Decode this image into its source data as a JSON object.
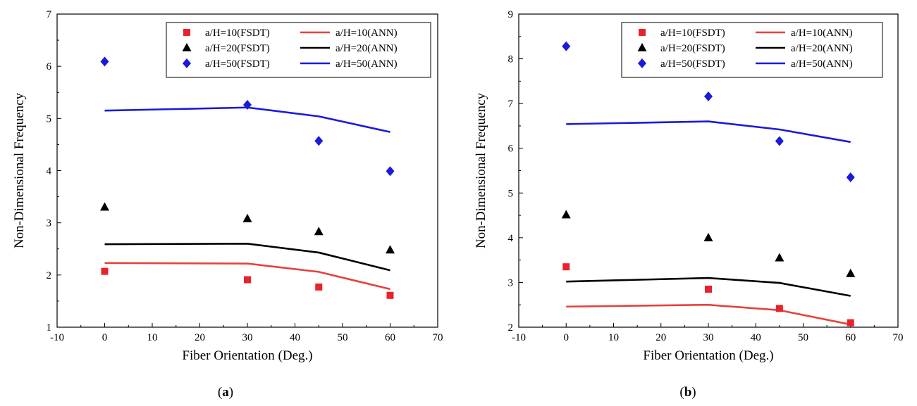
{
  "chart_data": [
    {
      "type": "line",
      "panel_label": "a",
      "caption_open": "(",
      "caption_close": ")",
      "xlabel": "Fiber Orientation (Deg.)",
      "ylabel": "Non-Dimensional Frequency",
      "xlim": [
        -10,
        70
      ],
      "ylim": [
        1,
        7
      ],
      "xticks": [
        -10,
        0,
        10,
        20,
        30,
        40,
        50,
        60,
        70
      ],
      "yticks": [
        1,
        2,
        3,
        4,
        5,
        6,
        7
      ],
      "grid": false,
      "legend_position": "top-right",
      "scatter_series": [
        {
          "name": "a/H=10(FSDT)",
          "marker": "square",
          "color": "#e8232a",
          "x": [
            0,
            30,
            45,
            60
          ],
          "y": [
            2.07,
            1.91,
            1.77,
            1.61
          ]
        },
        {
          "name": "a/H=20(FSDT)",
          "marker": "triangle",
          "color": "#000000",
          "x": [
            0,
            30,
            45,
            60
          ],
          "y": [
            3.3,
            3.08,
            2.83,
            2.48
          ]
        },
        {
          "name": "a/H=50(FSDT)",
          "marker": "diamond",
          "color": "#1a1adb",
          "x": [
            0,
            30,
            45,
            60
          ],
          "y": [
            6.09,
            5.26,
            4.57,
            3.99
          ]
        }
      ],
      "line_series": [
        {
          "name": "a/H=10(ANN)",
          "color": "#e8413d",
          "x": [
            0,
            30,
            45,
            60
          ],
          "y": [
            2.23,
            2.22,
            2.06,
            1.73
          ]
        },
        {
          "name": "a/H=20(ANN)",
          "color": "#000000",
          "x": [
            0,
            30,
            45,
            60
          ],
          "y": [
            2.59,
            2.6,
            2.43,
            2.09
          ]
        },
        {
          "name": "a/H=50(ANN)",
          "color": "#1a1adb",
          "x": [
            0,
            30,
            45,
            60
          ],
          "y": [
            5.15,
            5.21,
            5.04,
            4.74
          ]
        }
      ]
    },
    {
      "type": "line",
      "panel_label": "b",
      "caption_open": "(",
      "caption_close": ")",
      "xlabel": "Fiber Orientation (Deg.)",
      "ylabel": "Non-Dimensional Frequency",
      "xlim": [
        -10,
        70
      ],
      "ylim": [
        2,
        9
      ],
      "xticks": [
        -10,
        0,
        10,
        20,
        30,
        40,
        50,
        60,
        70
      ],
      "yticks": [
        2,
        3,
        4,
        5,
        6,
        7,
        8,
        9
      ],
      "grid": false,
      "legend_position": "top-right",
      "scatter_series": [
        {
          "name": "a/H=10(FSDT)",
          "marker": "square",
          "color": "#e8232a",
          "x": [
            0,
            30,
            45,
            60
          ],
          "y": [
            3.35,
            2.85,
            2.42,
            2.1
          ]
        },
        {
          "name": "a/H=20(FSDT)",
          "marker": "triangle",
          "color": "#000000",
          "x": [
            0,
            30,
            45,
            60
          ],
          "y": [
            4.51,
            4.0,
            3.55,
            3.2
          ]
        },
        {
          "name": "a/H=50(FSDT)",
          "marker": "diamond",
          "color": "#1a1adb",
          "x": [
            0,
            30,
            45,
            60
          ],
          "y": [
            8.28,
            7.16,
            6.16,
            5.35
          ]
        }
      ],
      "line_series": [
        {
          "name": "a/H=10(ANN)",
          "color": "#e8413d",
          "x": [
            0,
            30,
            45,
            60
          ],
          "y": [
            2.46,
            2.5,
            2.38,
            2.06
          ]
        },
        {
          "name": "a/H=20(ANN)",
          "color": "#000000",
          "x": [
            0,
            30,
            45,
            60
          ],
          "y": [
            3.02,
            3.1,
            2.99,
            2.7
          ]
        },
        {
          "name": "a/H=50(ANN)",
          "color": "#1a1adb",
          "x": [
            0,
            30,
            45,
            60
          ],
          "y": [
            6.54,
            6.6,
            6.42,
            6.14
          ]
        }
      ]
    }
  ]
}
